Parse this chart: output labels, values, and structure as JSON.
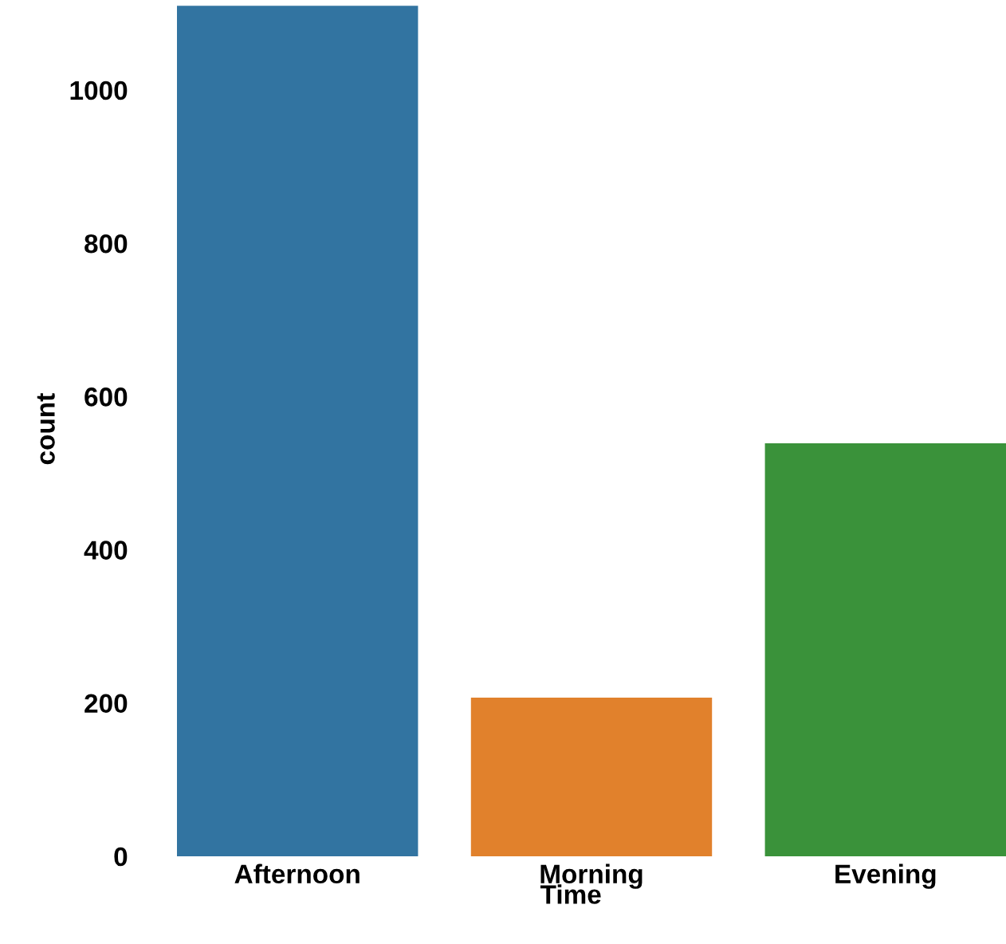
{
  "chart_data": {
    "type": "bar",
    "xlabel": "Time",
    "ylabel": "count",
    "categories": [
      "Afternoon",
      "Morning",
      "Evening"
    ],
    "values": [
      1110,
      207,
      539
    ],
    "colors": [
      "#3274a1",
      "#e1812c",
      "#3a923a"
    ],
    "ylim": [
      0,
      1115
    ],
    "yticks": [
      0,
      200,
      400,
      600,
      800,
      1000
    ],
    "grid": false
  }
}
